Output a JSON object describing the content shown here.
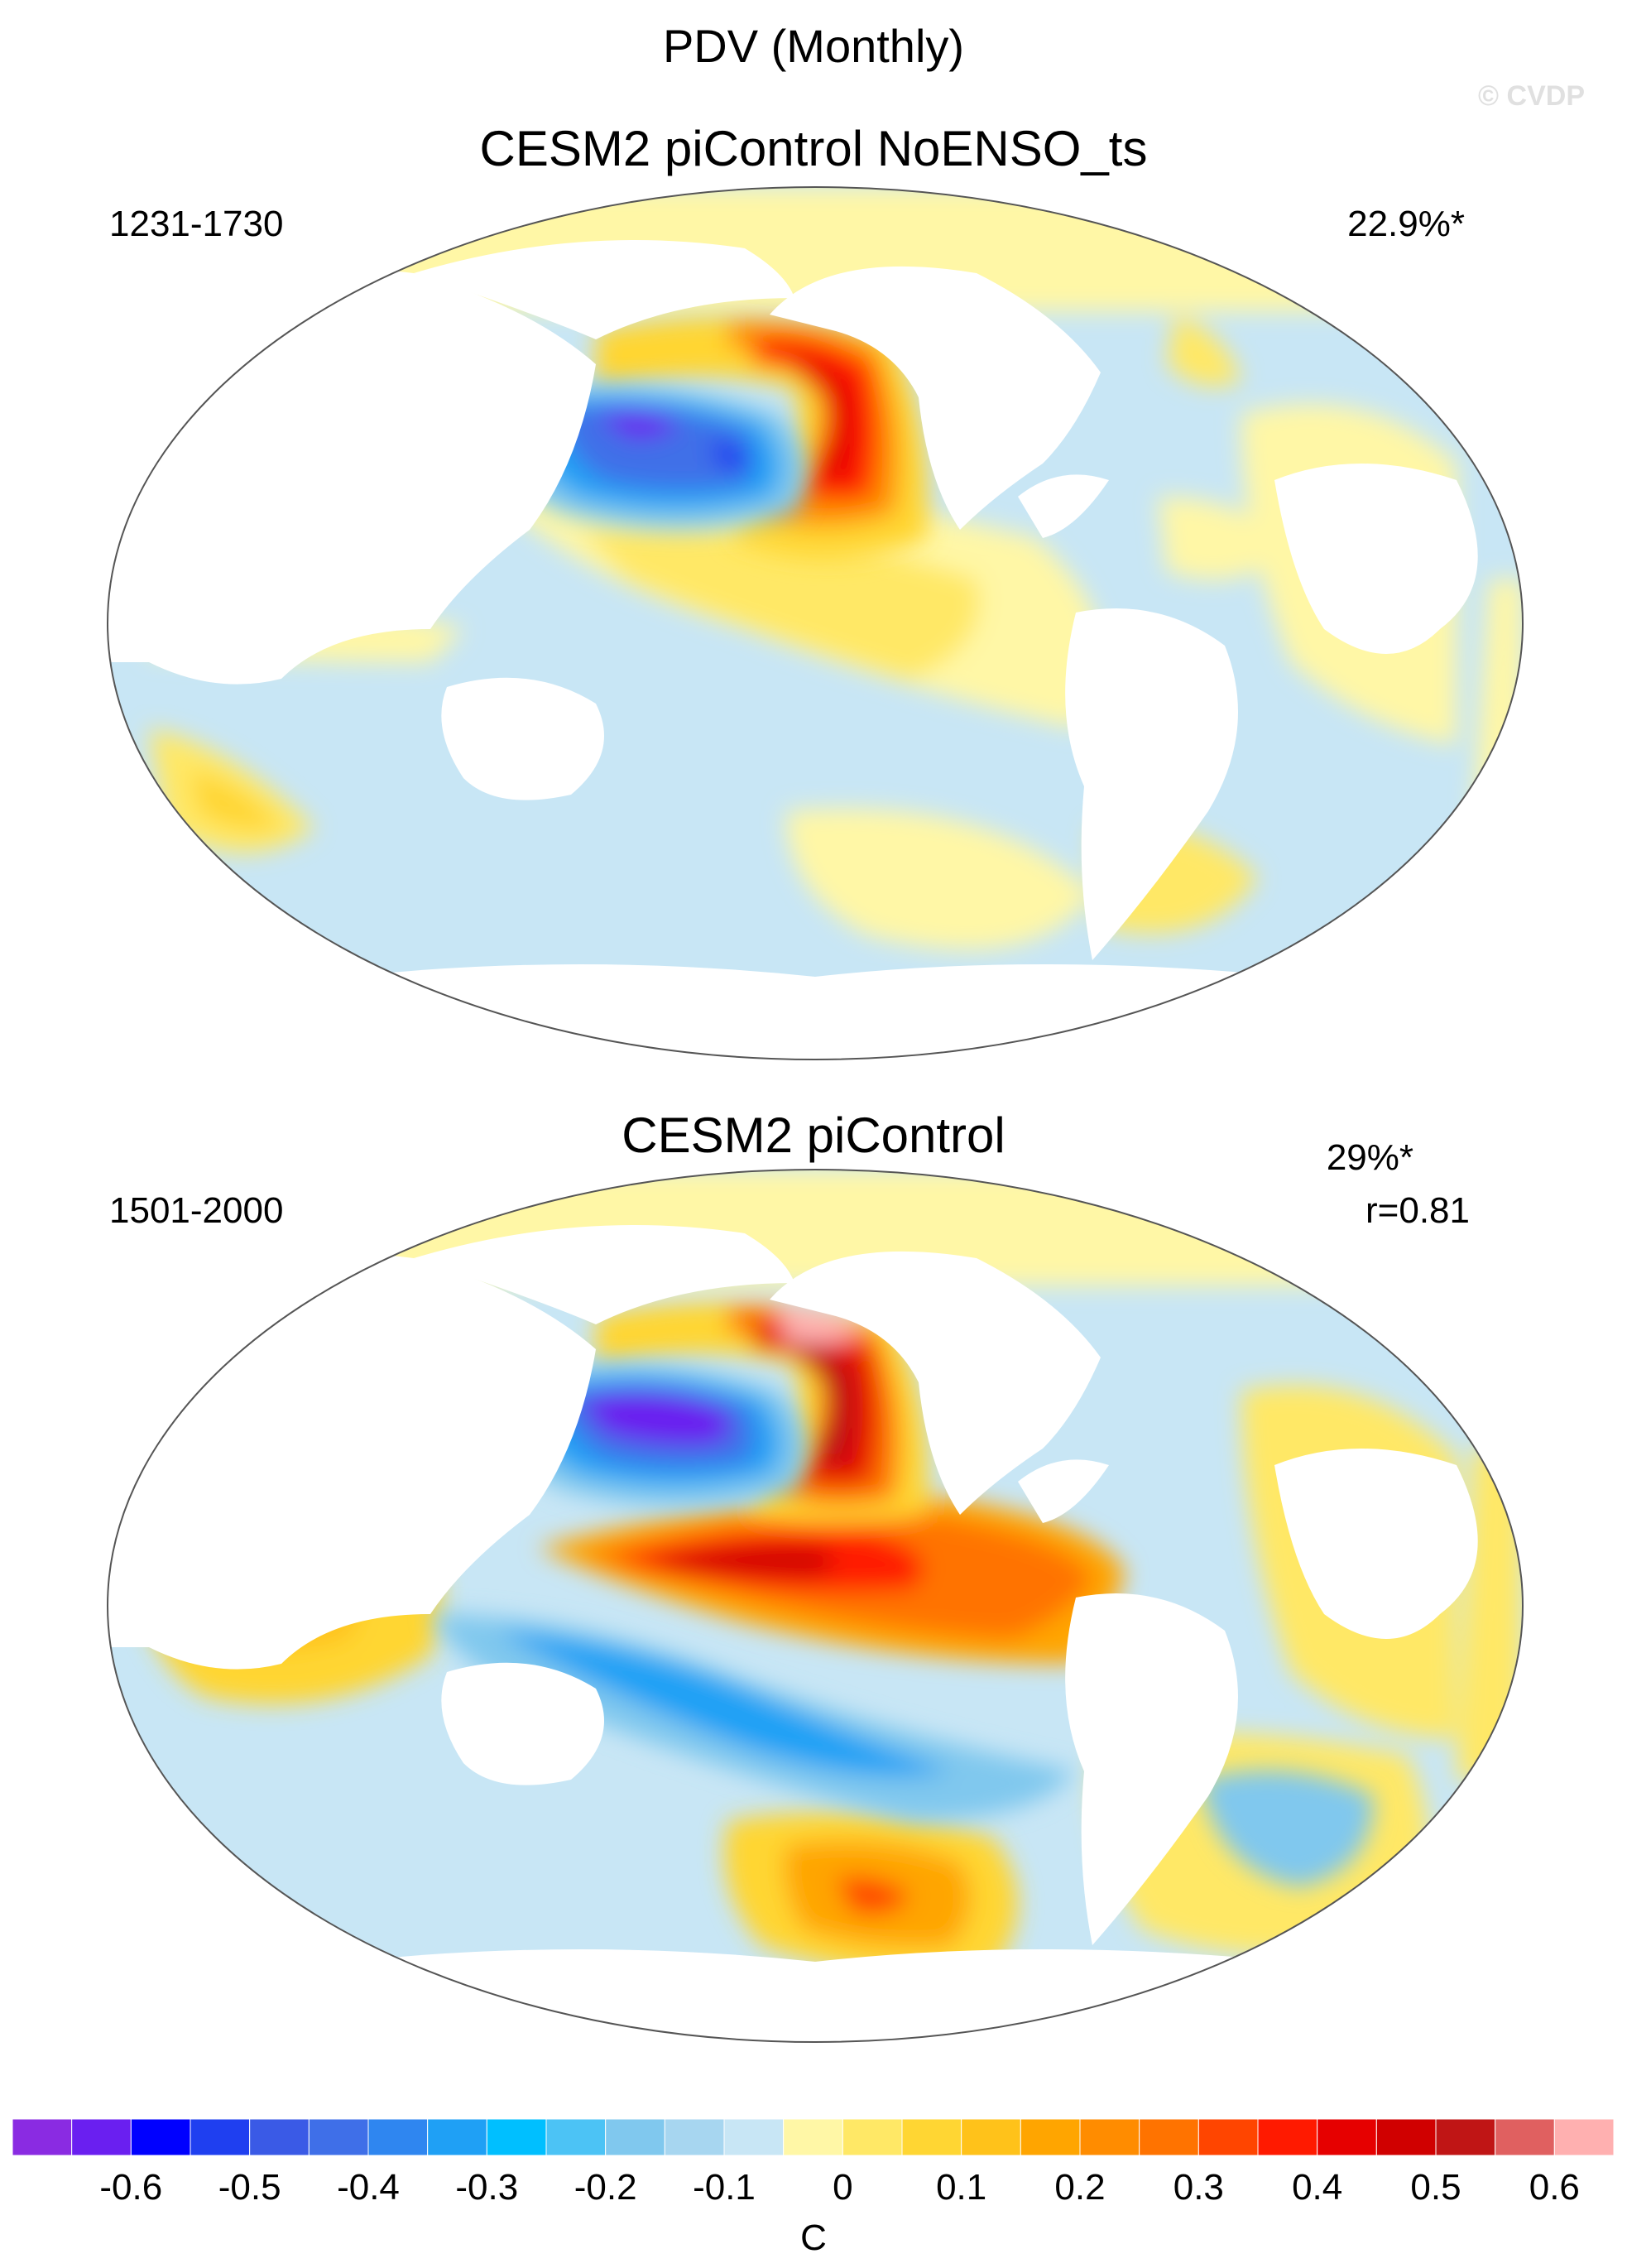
{
  "figure": {
    "title": "PDV (Monthly)",
    "watermark": "© CVDP"
  },
  "panels": [
    {
      "title": "CESM2 piControl NoENSO_ts",
      "years": "1231-1730",
      "variance": "22.9%*",
      "correlation": ""
    },
    {
      "title": "CESM2 piControl",
      "years": "1501-2000",
      "variance": "29%*",
      "correlation": "r=0.81"
    }
  ],
  "colorbar": {
    "unit": "C",
    "colors": [
      "#8a2be2",
      "#6a1ff0",
      "#0000ff",
      "#1f3ff0",
      "#3a5ae6",
      "#3f6fe8",
      "#2f86f0",
      "#1fa0f5",
      "#00bfff",
      "#4cc3f5",
      "#80c8ee",
      "#a7d6f0",
      "#c8e6f5",
      "#fff7a6",
      "#ffe866",
      "#ffd633",
      "#ffc21a",
      "#ffa500",
      "#ff8c00",
      "#ff7300",
      "#ff4500",
      "#ff1a00",
      "#e60000",
      "#d00000",
      "#c01515",
      "#e06060",
      "#ffb0b0"
    ],
    "tick_labels": [
      "-0.6",
      "-0.5",
      "-0.4",
      "-0.3",
      "-0.2",
      "-0.1",
      "0",
      "0.1",
      "0.2",
      "0.3",
      "0.4",
      "0.5",
      "0.6"
    ]
  }
}
